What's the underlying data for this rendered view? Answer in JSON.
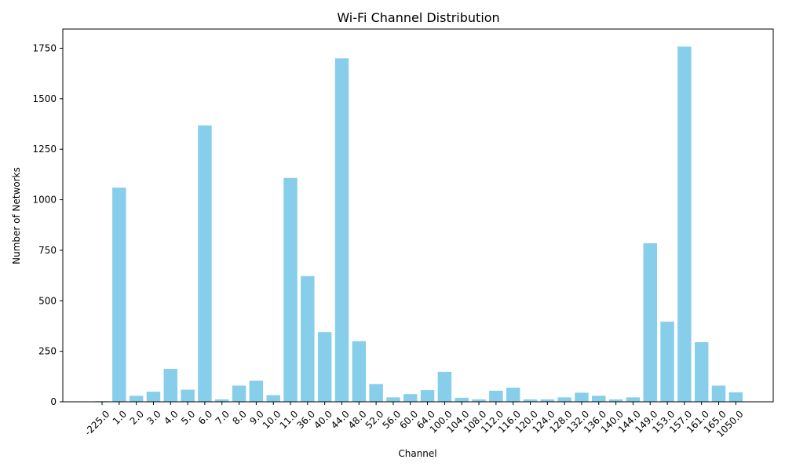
{
  "chart_data": {
    "type": "bar",
    "title": "Wi-Fi Channel Distribution",
    "xlabel": "Channel",
    "ylabel": "Number of Networks",
    "categories": [
      "-225.0",
      "1.0",
      "2.0",
      "3.0",
      "4.0",
      "5.0",
      "6.0",
      "7.0",
      "8.0",
      "9.0",
      "10.0",
      "11.0",
      "36.0",
      "40.0",
      "44.0",
      "48.0",
      "52.0",
      "56.0",
      "60.0",
      "64.0",
      "100.0",
      "104.0",
      "108.0",
      "112.0",
      "116.0",
      "120.0",
      "124.0",
      "128.0",
      "132.0",
      "136.0",
      "140.0",
      "144.0",
      "149.0",
      "153.0",
      "157.0",
      "161.0",
      "165.0",
      "1050.0"
    ],
    "values": [
      3,
      1060,
      30,
      50,
      163,
      60,
      1368,
      12,
      80,
      105,
      33,
      1108,
      622,
      345,
      1700,
      300,
      88,
      22,
      38,
      58,
      148,
      20,
      12,
      55,
      70,
      12,
      12,
      22,
      45,
      30,
      12,
      22,
      785,
      397,
      1758,
      295,
      80,
      47
    ],
    "ylim": [
      0,
      1845
    ],
    "yticks": [
      0,
      250,
      500,
      750,
      1000,
      1250,
      1500,
      1750
    ],
    "bar_color": "#87ceeb",
    "grid": false
  }
}
